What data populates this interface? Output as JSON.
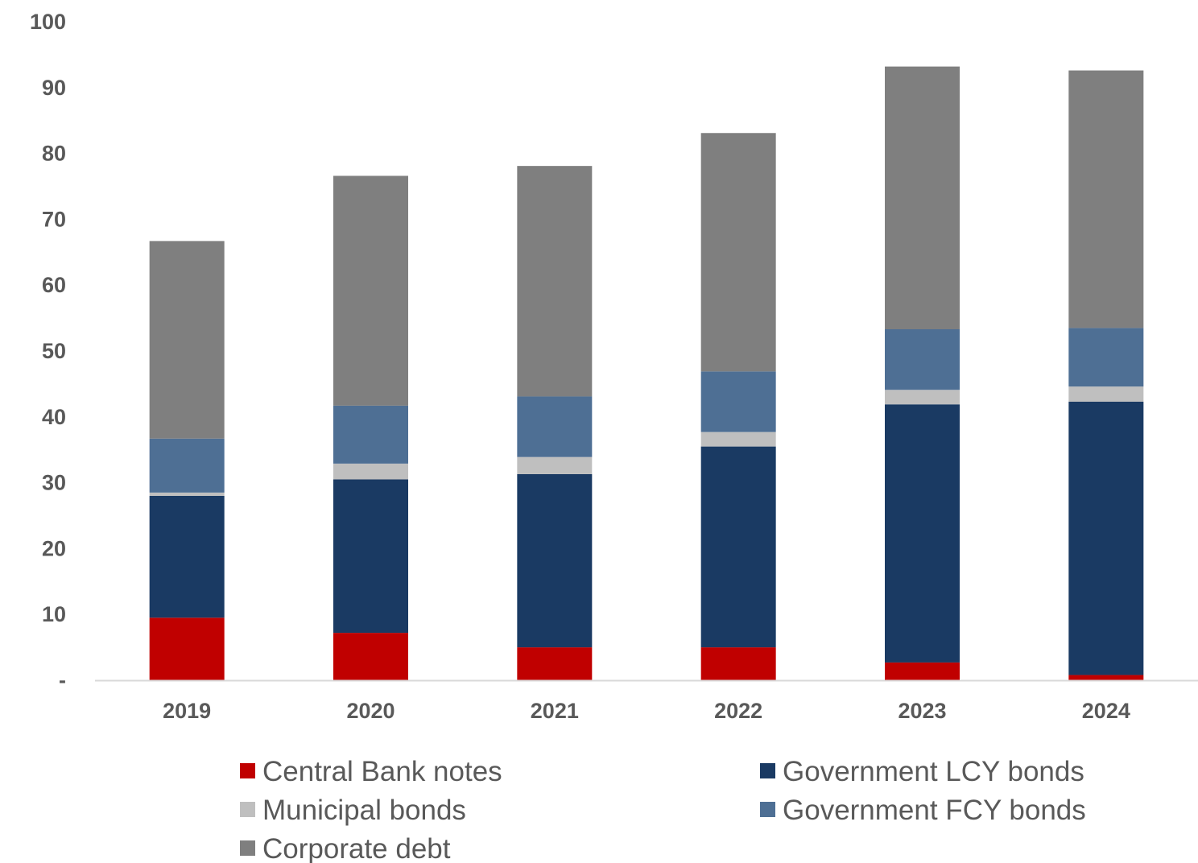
{
  "chart_data": {
    "type": "bar",
    "stacked": true,
    "categories": [
      "2019",
      "2020",
      "2021",
      "2022",
      "2023",
      "2024"
    ],
    "series": [
      {
        "name": "Central Bank notes",
        "color": "#c00000",
        "values": [
          9.5,
          7.2,
          5.0,
          5.0,
          2.7,
          0.8
        ]
      },
      {
        "name": "Government LCY bonds",
        "color": "#1a3a63",
        "values": [
          18.5,
          23.3,
          26.3,
          30.5,
          39.2,
          41.5
        ]
      },
      {
        "name": "Municipal bonds",
        "color": "#bfbfbf",
        "values": [
          0.5,
          2.4,
          2.6,
          2.2,
          2.2,
          2.3
        ]
      },
      {
        "name": "Government FCY bonds",
        "color": "#4e6f94",
        "values": [
          8.2,
          8.8,
          9.2,
          9.2,
          9.2,
          8.9
        ]
      },
      {
        "name": "Corporate debt",
        "color": "#7f7f7f",
        "values": [
          30.0,
          34.9,
          35.0,
          36.2,
          39.9,
          39.1
        ]
      }
    ],
    "y_ticks": [
      "-",
      "10",
      "20",
      "30",
      "40",
      "50",
      "60",
      "70",
      "80",
      "90",
      "100"
    ],
    "ylim": [
      0,
      100
    ],
    "grid": false,
    "legend_position": "bottom",
    "legend_order": [
      "Central Bank notes",
      "Government LCY bonds",
      "Municipal bonds",
      "Government FCY bonds",
      "Corporate debt"
    ]
  }
}
